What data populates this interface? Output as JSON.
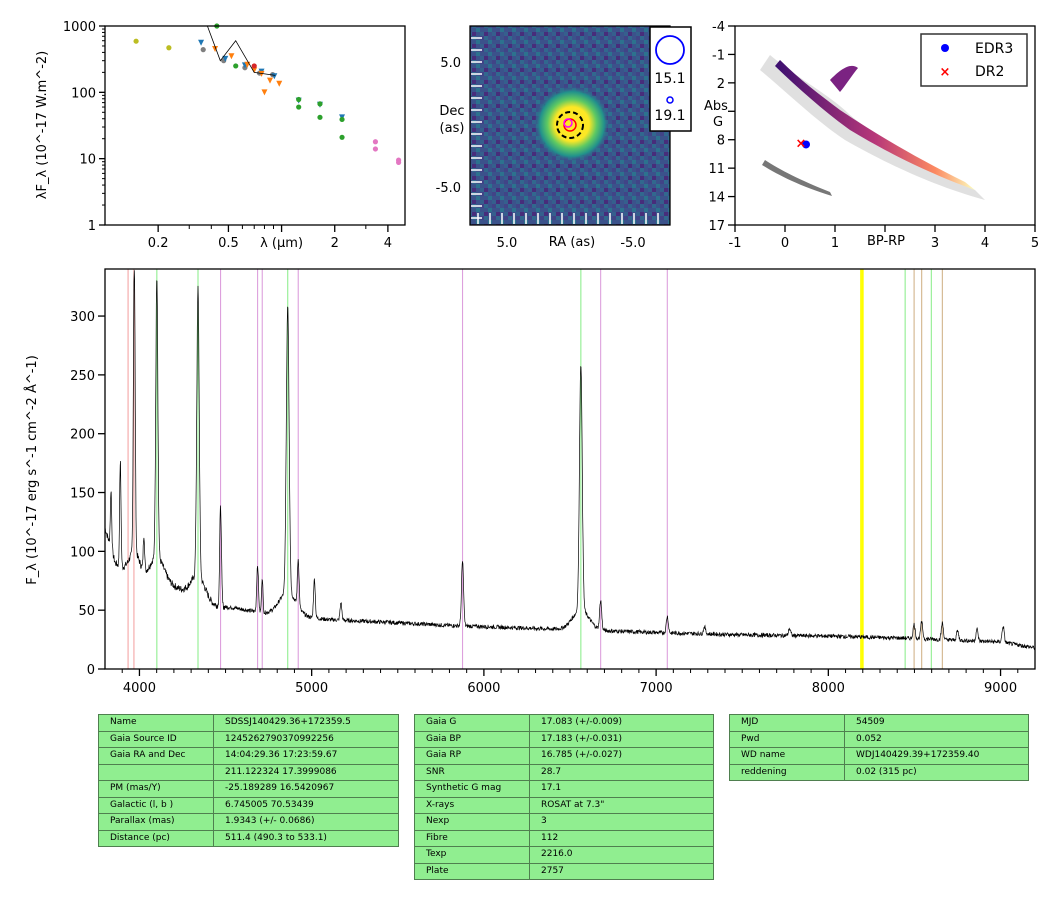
{
  "sed": {
    "ylabel": "λF_λ (10^-17 W.m^-2)",
    "yticks": [
      "1",
      "10",
      "100",
      "1000"
    ],
    "xticks": [
      "0.2",
      "0.5",
      "λ (μm)",
      "2",
      "4"
    ],
    "chart_data": {
      "type": "scatter",
      "x_scale": "log",
      "y_scale": "log",
      "xlim": [
        0.1,
        5.0
      ],
      "ylim": [
        1,
        1000
      ],
      "series": [
        {
          "color": "#bcbd22",
          "x": [
            0.15,
            0.23
          ],
          "y": [
            590,
            470
          ]
        },
        {
          "color": "#7f7f7f",
          "x": [
            0.36,
            0.47,
            0.62,
            0.75,
            0.89
          ],
          "y": [
            440,
            300,
            235,
            195,
            185
          ]
        },
        {
          "color": "#1f77b4",
          "x": [
            0.35,
            0.48,
            0.62,
            0.77,
            0.91,
            1.25,
            1.65,
            2.2
          ],
          "y": [
            560,
            320,
            255,
            205,
            175,
            75,
            65,
            42
          ]
        },
        {
          "color": "#ff7f0e",
          "x": [
            0.42,
            0.52,
            0.64,
            0.7,
            0.77,
            0.8,
            0.86,
            0.97
          ],
          "y": [
            450,
            350,
            260,
            215,
            190,
            100,
            150,
            135
          ]
        },
        {
          "color": "#2ca02c",
          "x": [
            0.43,
            0.55,
            1.25,
            1.65,
            2.2,
            1.25,
            1.65,
            2.2
          ],
          "y": [
            1000,
            250,
            78,
            67,
            39,
            60,
            42,
            21
          ]
        },
        {
          "color": "#e377c2",
          "x": [
            3.4,
            4.6,
            3.4,
            4.6
          ],
          "y": [
            18,
            9.5,
            14,
            8.8
          ]
        },
        {
          "color": "#d62728",
          "x": [
            0.7
          ],
          "y": [
            250
          ]
        },
        {
          "color": "#000000",
          "type": "line",
          "x": [
            0.38,
            0.45,
            0.55,
            0.7,
            0.92
          ],
          "y": [
            1000,
            300,
            600,
            200,
            180
          ]
        }
      ]
    }
  },
  "image": {
    "ylabel": "Dec\n(as)",
    "xlabel": "RA (as)",
    "xticks": [
      "5.0",
      "-5.0"
    ],
    "yticks": [
      "5.0",
      "-5.0"
    ],
    "legend": [
      "15.1",
      "19.1"
    ]
  },
  "hrd": {
    "ylabel": "Abs\nG",
    "xlabel": "BP-RP",
    "xticks": [
      "-1",
      "0",
      "1",
      "3",
      "4",
      "5"
    ],
    "yticks": [
      "-4",
      "-1",
      "2",
      "5",
      "8",
      "11",
      "14",
      "17"
    ],
    "legend": [
      "EDR3",
      "DR2"
    ],
    "chart_data": {
      "type": "scatter",
      "xlim": [
        -1,
        5
      ],
      "ylim": [
        17,
        -4
      ],
      "series": [
        {
          "name": "EDR3",
          "color": "#0000ff",
          "x": [
            0.42
          ],
          "y": [
            8.5
          ]
        },
        {
          "name": "DR2",
          "color": "#ff0000",
          "x": [
            0.32
          ],
          "y": [
            8.4
          ]
        }
      ]
    }
  },
  "spectrum": {
    "ylabel": "F_λ (10^-17 erg s^-1 cm^-2 Å^-1)",
    "chart_data": {
      "type": "line",
      "xlim": [
        3800,
        9200
      ],
      "ylim": [
        0,
        340
      ],
      "xticks": [
        4000,
        5000,
        6000,
        7000,
        8000,
        9000
      ],
      "yticks": [
        0,
        50,
        100,
        150,
        200,
        250,
        300
      ],
      "continuum": [
        [
          3800,
          120
        ],
        [
          3860,
          90
        ],
        [
          3950,
          80
        ],
        [
          4050,
          78
        ],
        [
          4150,
          75
        ],
        [
          4250,
          66
        ],
        [
          4300,
          62
        ],
        [
          4420,
          54
        ],
        [
          4550,
          52
        ],
        [
          4700,
          48
        ],
        [
          4900,
          45
        ],
        [
          5100,
          42
        ],
        [
          5400,
          40
        ],
        [
          5800,
          37
        ],
        [
          6200,
          35
        ],
        [
          6600,
          33
        ],
        [
          7000,
          31
        ],
        [
          7500,
          29
        ],
        [
          8000,
          28
        ],
        [
          8500,
          26
        ],
        [
          9000,
          23
        ],
        [
          9200,
          18
        ]
      ],
      "lines": [
        [
          3835,
          50,
          4
        ],
        [
          3889,
          90,
          4
        ],
        [
          3970,
          250,
          5
        ],
        [
          4026,
          30,
          4
        ],
        [
          4101,
          240,
          6
        ],
        [
          4340,
          245,
          7
        ],
        [
          4471,
          85,
          5
        ],
        [
          4686,
          40,
          5
        ],
        [
          4713,
          30,
          4
        ],
        [
          4861,
          245,
          8
        ],
        [
          4922,
          40,
          5
        ],
        [
          5016,
          33,
          5
        ],
        [
          5170,
          15,
          5
        ],
        [
          5876,
          55,
          6
        ],
        [
          6563,
          210,
          8
        ],
        [
          6678,
          25,
          6
        ],
        [
          7065,
          14,
          6
        ],
        [
          7281,
          6,
          6
        ],
        [
          7775,
          6,
          6
        ],
        [
          8498,
          12,
          6
        ],
        [
          8542,
          14,
          6
        ],
        [
          8662,
          14,
          6
        ],
        [
          8750,
          8,
          6
        ],
        [
          8863,
          10,
          6
        ],
        [
          9015,
          14,
          6
        ]
      ],
      "markers": [
        {
          "x": 3934,
          "color": "#f4a6a6"
        },
        {
          "x": 3968,
          "color": "#f4a6a6"
        },
        {
          "x": 4101,
          "color": "#90ee90"
        },
        {
          "x": 4340,
          "color": "#90ee90"
        },
        {
          "x": 4861,
          "color": "#90ee90"
        },
        {
          "x": 6563,
          "color": "#90ee90"
        },
        {
          "x": 4471,
          "color": "#dda0dd"
        },
        {
          "x": 4686,
          "color": "#dda0dd"
        },
        {
          "x": 4713,
          "color": "#dda0dd"
        },
        {
          "x": 4922,
          "color": "#dda0dd"
        },
        {
          "x": 5876,
          "color": "#dda0dd"
        },
        {
          "x": 6678,
          "color": "#dda0dd"
        },
        {
          "x": 7065,
          "color": "#dda0dd"
        },
        {
          "x": 8190,
          "color": "#ffff00"
        },
        {
          "x": 8200,
          "color": "#ffff00"
        },
        {
          "x": 8446,
          "color": "#90ee90"
        },
        {
          "x": 8498,
          "color": "#d2b48c"
        },
        {
          "x": 8542,
          "color": "#d2b48c"
        },
        {
          "x": 8598,
          "color": "#90ee90"
        },
        {
          "x": 8662,
          "color": "#d2b48c"
        }
      ]
    }
  },
  "tables": [
    [
      [
        "Name",
        "SDSSJ140429.36+172359.5"
      ],
      [
        "Gaia Source ID",
        "1245262790370992256"
      ],
      [
        "Gaia RA and Dec",
        "14:04:29.36    17:23:59.67"
      ],
      [
        "",
        "211.122324    17.3999086"
      ],
      [
        "PM (mas/Y)",
        "-25.189289    16.5420967"
      ],
      [
        "Galactic (l, b )",
        "6.745005    70.53439"
      ],
      [
        "Parallax (mas)",
        "1.9343 (+/- 0.0686)"
      ],
      [
        "Distance (pc)",
        "511.4 (490.3 to 533.1)"
      ]
    ],
    [
      [
        "Gaia G",
        "17.083 (+/-0.009)"
      ],
      [
        "Gaia BP",
        "17.183 (+/-0.031)"
      ],
      [
        "Gaia RP",
        "16.785 (+/-0.027)"
      ],
      [
        "SNR",
        "28.7"
      ],
      [
        "Synthetic G mag",
        "17.1"
      ],
      [
        "X-rays",
        "ROSAT at 7.3\""
      ],
      [
        "Nexp",
        "3"
      ],
      [
        "Fibre",
        "112"
      ],
      [
        "Texp",
        "2216.0"
      ],
      [
        "Plate",
        "2757"
      ]
    ],
    [
      [
        "MJD",
        "54509"
      ],
      [
        "Pwd",
        "0.052"
      ],
      [
        "WD name",
        "WDJ140429.39+172359.40"
      ],
      [
        "reddening",
        "0.02 (315 pc)"
      ]
    ]
  ]
}
